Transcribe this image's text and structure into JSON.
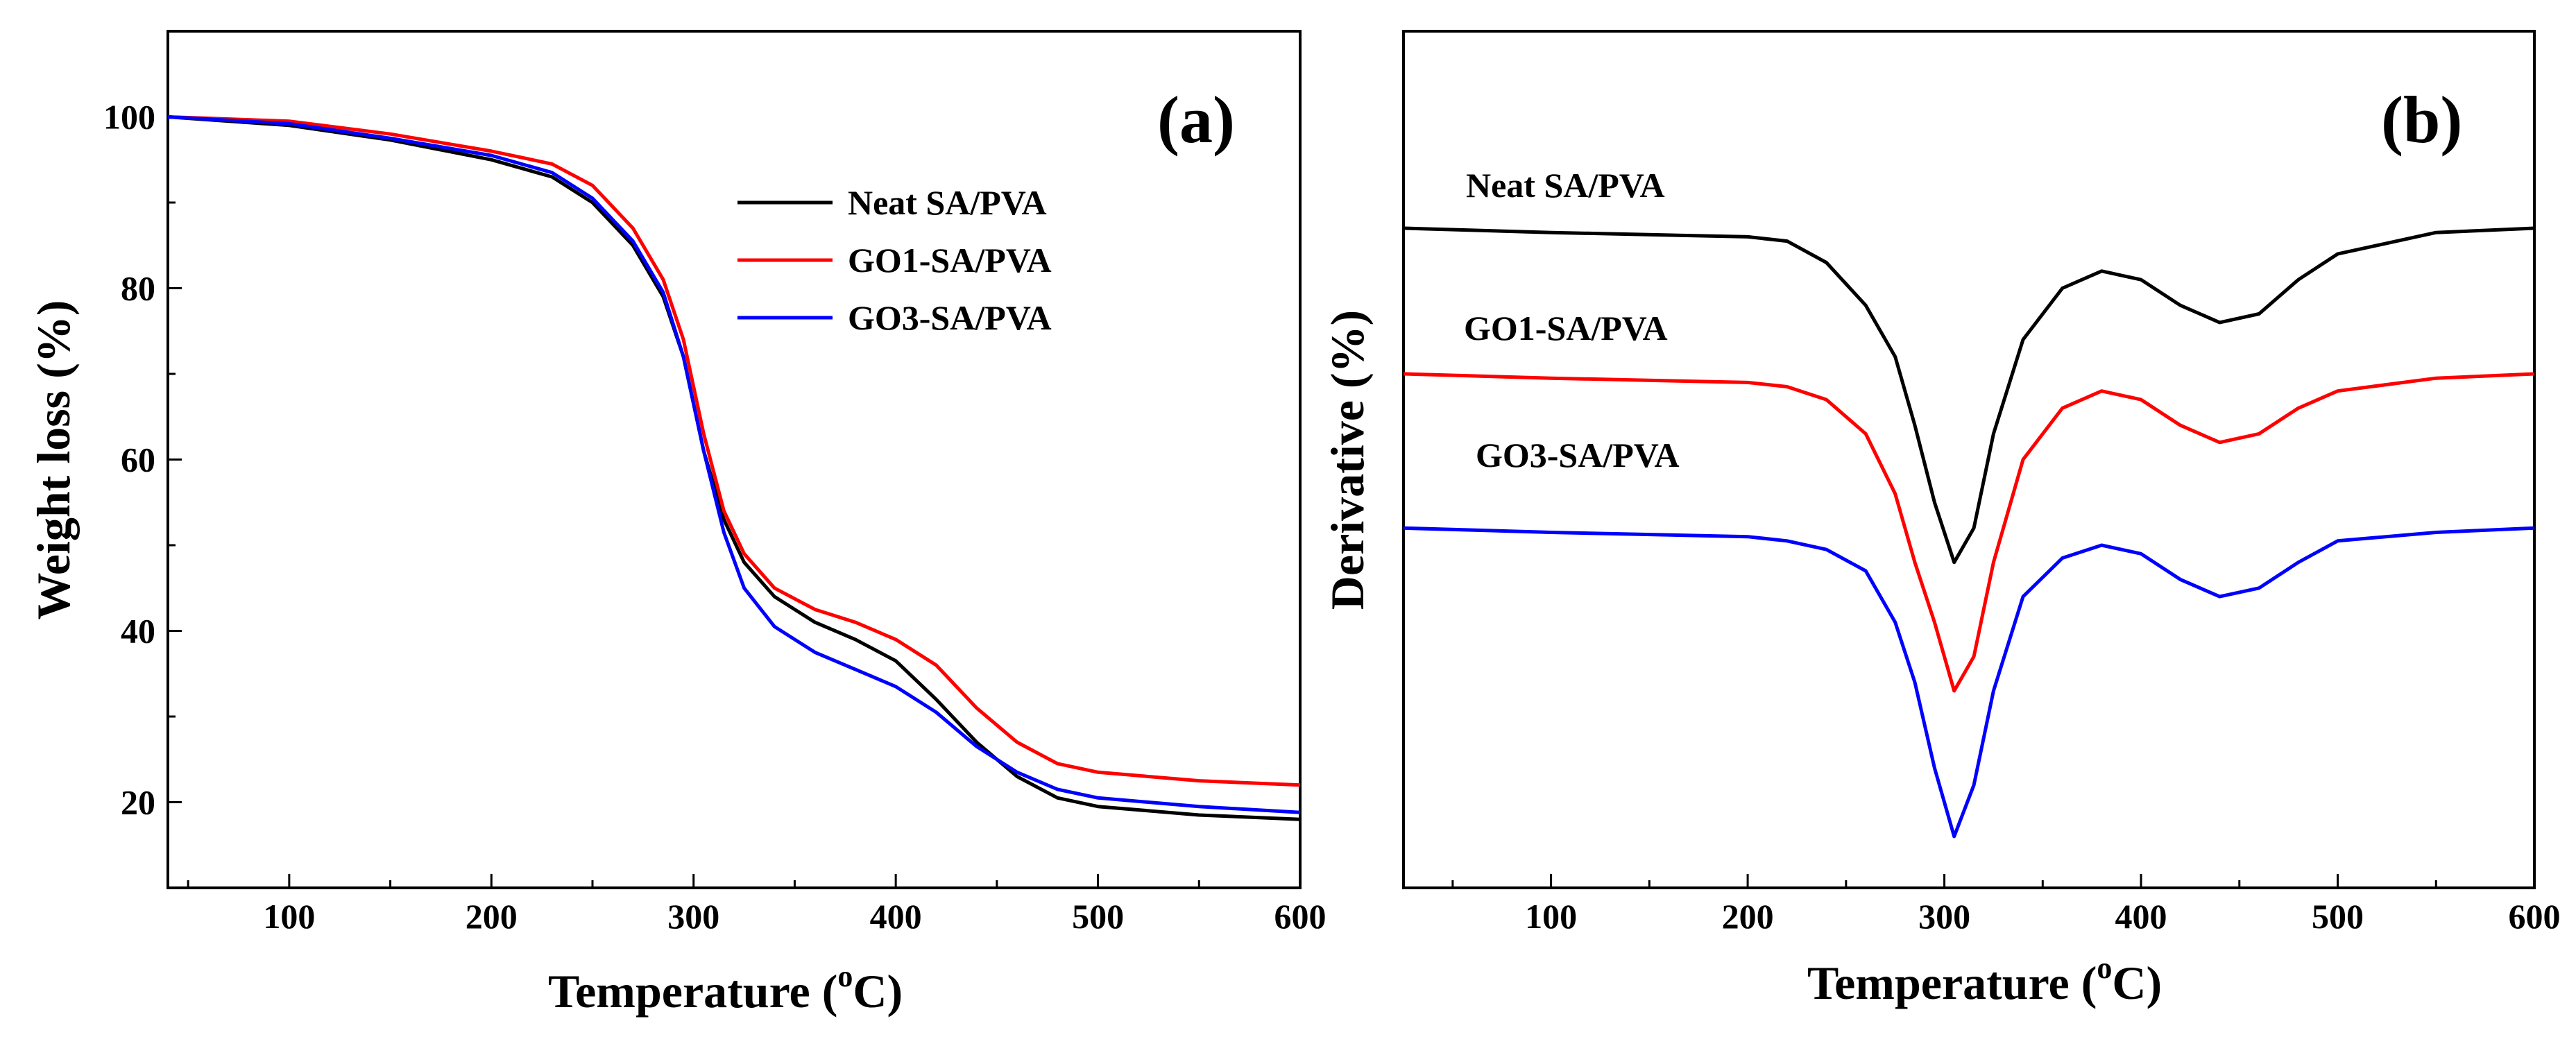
{
  "chart_data": [
    {
      "type": "line",
      "panel": "(a)",
      "xlabel": "Temperature (°C)",
      "xlabel_parts": {
        "main": "Temperature (",
        "superscript": "o",
        "tail": "C)"
      },
      "ylabel": "Weight loss (%)",
      "xlim": [
        40,
        600
      ],
      "ylim": [
        10,
        110
      ],
      "x_ticks": [
        100,
        200,
        300,
        400,
        500,
        600
      ],
      "x_tick_labels": [
        "100",
        "200",
        "300",
        "400",
        "500",
        "600"
      ],
      "y_ticks": [
        20,
        40,
        60,
        80,
        100
      ],
      "y_tick_labels": [
        "20",
        "40",
        "60",
        "80",
        "100"
      ],
      "legend": "upper-right",
      "series": [
        {
          "name": "Neat SA/PVA",
          "color": "#000000",
          "x": [
            40,
            100,
            150,
            200,
            230,
            250,
            270,
            285,
            295,
            305,
            315,
            325,
            340,
            360,
            380,
            400,
            420,
            440,
            460,
            480,
            500,
            550,
            600
          ],
          "y": [
            100,
            99,
            97.3,
            95,
            93,
            90,
            85,
            79,
            72,
            61,
            53,
            48,
            44,
            41,
            39,
            36.5,
            32,
            27,
            23,
            20.5,
            19.5,
            18.5,
            18
          ]
        },
        {
          "name": "GO1-SA/PVA",
          "color": "#ff0000",
          "x": [
            40,
            100,
            150,
            200,
            230,
            250,
            270,
            285,
            295,
            305,
            315,
            325,
            340,
            360,
            380,
            400,
            420,
            440,
            460,
            480,
            500,
            550,
            600
          ],
          "y": [
            100,
            99.5,
            98,
            96,
            94.5,
            92,
            87,
            81,
            74,
            63,
            54,
            49,
            45,
            42.5,
            41,
            39,
            36,
            31,
            27,
            24.5,
            23.5,
            22.5,
            22
          ]
        },
        {
          "name": "GO3-SA/PVA",
          "color": "#0000ff",
          "x": [
            40,
            100,
            150,
            200,
            230,
            250,
            270,
            285,
            295,
            305,
            315,
            325,
            340,
            360,
            380,
            400,
            420,
            440,
            460,
            480,
            500,
            550,
            600
          ],
          "y": [
            100,
            99.2,
            97.5,
            95.5,
            93.5,
            90.5,
            85.5,
            79.5,
            72,
            61,
            51.5,
            45,
            40.5,
            37.5,
            35.5,
            33.5,
            30.5,
            26.5,
            23.5,
            21.5,
            20.5,
            19.5,
            18.8
          ]
        }
      ]
    },
    {
      "type": "line",
      "panel": "(b)",
      "xlabel": "Temperature (°C)",
      "xlabel_parts": {
        "main": "Temperature (",
        "superscript": "o",
        "tail": "C)"
      },
      "ylabel": "Derivative (%)",
      "xlim": [
        25,
        600
      ],
      "ylim": [
        0,
        100
      ],
      "x_ticks": [
        100,
        200,
        300,
        400,
        500,
        600
      ],
      "x_tick_labels": [
        "100",
        "200",
        "300",
        "400",
        "500",
        "600"
      ],
      "y_tick_labels": [],
      "series": [
        {
          "name": "Neat SA/PVA",
          "color": "#000000",
          "x": [
            25,
            100,
            200,
            220,
            240,
            260,
            275,
            285,
            295,
            305,
            315,
            325,
            340,
            360,
            380,
            400,
            420,
            440,
            460,
            480,
            500,
            550,
            600
          ],
          "y": [
            77,
            76.5,
            76,
            75.5,
            73,
            68,
            62,
            54,
            45,
            38,
            42,
            53,
            64,
            70,
            72,
            71,
            68,
            66,
            67,
            71,
            74,
            76.5,
            77
          ]
        },
        {
          "name": "GO1-SA/PVA",
          "color": "#ff0000",
          "x": [
            25,
            100,
            200,
            220,
            240,
            260,
            275,
            285,
            295,
            305,
            315,
            325,
            340,
            360,
            380,
            400,
            420,
            440,
            460,
            480,
            500,
            550,
            600
          ],
          "y": [
            60,
            59.5,
            59,
            58.5,
            57,
            53,
            46,
            38,
            31,
            23,
            27,
            38,
            50,
            56,
            58,
            57,
            54,
            52,
            53,
            56,
            58,
            59.5,
            60
          ]
        },
        {
          "name": "GO3-SA/PVA",
          "color": "#0000ff",
          "x": [
            25,
            100,
            200,
            220,
            240,
            260,
            275,
            285,
            295,
            305,
            315,
            325,
            340,
            360,
            380,
            400,
            420,
            440,
            460,
            480,
            500,
            550,
            600
          ],
          "y": [
            42,
            41.5,
            41,
            40.5,
            39.5,
            37,
            31,
            24,
            14,
            6,
            12,
            23,
            34,
            38.5,
            40,
            39,
            36,
            34,
            35,
            38,
            40.5,
            41.5,
            42
          ]
        }
      ]
    }
  ]
}
